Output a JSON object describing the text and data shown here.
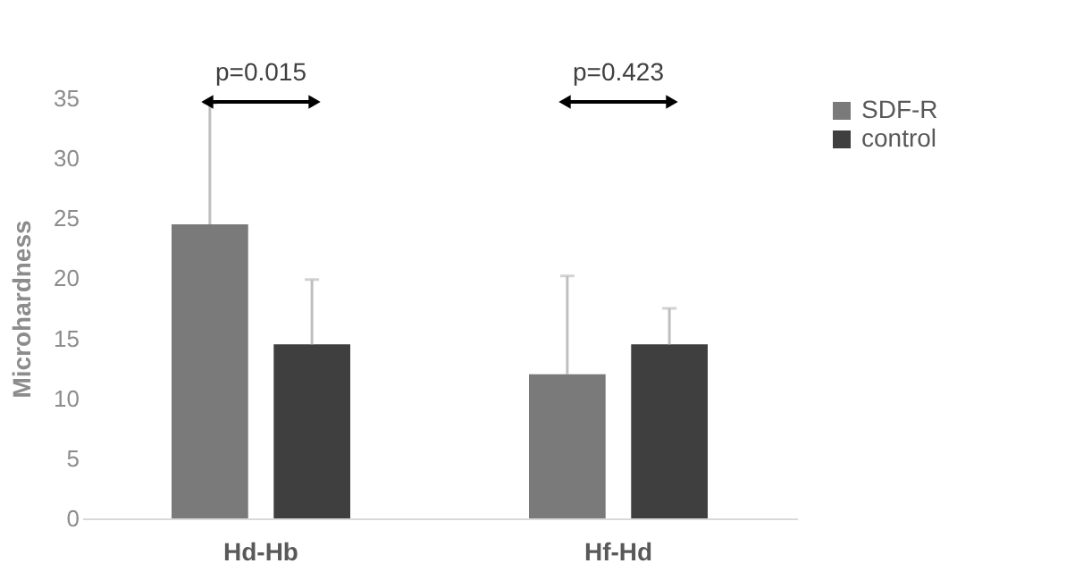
{
  "chart_data": {
    "type": "bar",
    "ylabel": "Microhardness",
    "categories": [
      "Hd-Hb",
      "Hf-Hd"
    ],
    "series": [
      {
        "name": "SDF-R",
        "color": "#7a7a7a",
        "values": [
          24.5,
          12.0
        ],
        "errors": [
          [
            24.5,
            34.6
          ],
          [
            12.0,
            20.2
          ]
        ]
      },
      {
        "name": "control",
        "color": "#3f3f3f",
        "values": [
          14.5,
          14.5
        ],
        "errors": [
          [
            14.5,
            19.9
          ],
          [
            14.5,
            17.5
          ]
        ]
      }
    ],
    "ylim": [
      0,
      35
    ],
    "yticks": [
      0,
      5,
      10,
      15,
      20,
      25,
      30,
      35
    ],
    "grid": false,
    "legend": "right",
    "annotations": [
      "p=0.015",
      "p=0.423"
    ]
  }
}
